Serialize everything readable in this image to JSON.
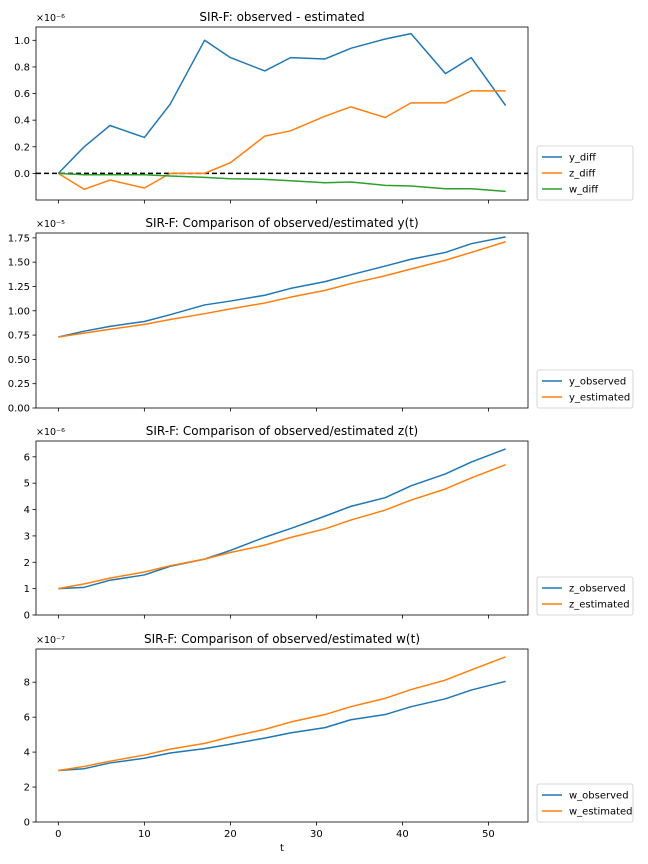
{
  "colors": {
    "c0": "#1f77b4",
    "c1": "#ff7f0e",
    "c2": "#2ca02c",
    "axis": "#000000",
    "zero_line": "#000000"
  },
  "chart_data": [
    {
      "type": "line",
      "title": "SIR-F: observed - estimated",
      "xlabel": "",
      "ylabel": "",
      "offset_text": "×10⁻⁶",
      "x": [
        0,
        3,
        6,
        10,
        13,
        17,
        20,
        24,
        27,
        31,
        34,
        38,
        41,
        45,
        48,
        52
      ],
      "xlim": [
        -2.6,
        54.6
      ],
      "ylim": [
        -0.2,
        1.1
      ],
      "yticks": [
        0.0,
        0.2,
        0.4,
        0.6,
        0.8,
        1.0
      ],
      "ytick_labels": [
        "0.0",
        "0.2",
        "0.4",
        "0.6",
        "0.8",
        "1.0"
      ],
      "xticks": [
        0,
        10,
        20,
        30,
        40,
        50
      ],
      "xtick_labels": [],
      "hline": 0,
      "legend_position": "right-bottom",
      "series": [
        {
          "name": "y_diff",
          "color": "#1f77b4",
          "values": [
            0.0,
            0.2,
            0.36,
            0.27,
            0.52,
            1.0,
            0.87,
            0.77,
            0.87,
            0.86,
            0.94,
            1.01,
            1.05,
            0.75,
            0.87,
            0.51
          ]
        },
        {
          "name": "z_diff",
          "color": "#ff7f0e",
          "values": [
            0.0,
            -0.12,
            -0.05,
            -0.11,
            0.0,
            0.0,
            0.08,
            0.28,
            0.32,
            0.43,
            0.5,
            0.42,
            0.53,
            0.53,
            0.62,
            0.62
          ]
        },
        {
          "name": "w_diff",
          "color": "#2ca02c",
          "values": [
            0.0,
            -0.01,
            -0.01,
            -0.01,
            -0.02,
            -0.03,
            -0.04,
            -0.045,
            -0.055,
            -0.07,
            -0.065,
            -0.09,
            -0.095,
            -0.115,
            -0.115,
            -0.135
          ]
        }
      ]
    },
    {
      "type": "line",
      "title": "SIR-F: Comparison of observed/estimated y(t)",
      "xlabel": "",
      "ylabel": "",
      "offset_text": "×10⁻⁵",
      "x": [
        0,
        3,
        6,
        10,
        13,
        17,
        20,
        24,
        27,
        31,
        34,
        38,
        41,
        45,
        48,
        52
      ],
      "xlim": [
        -2.6,
        54.6
      ],
      "ylim": [
        0,
        1.8
      ],
      "yticks": [
        0.0,
        0.25,
        0.5,
        0.75,
        1.0,
        1.25,
        1.5,
        1.75
      ],
      "ytick_labels": [
        "0.00",
        "0.25",
        "0.50",
        "0.75",
        "1.00",
        "1.25",
        "1.50",
        "1.75"
      ],
      "xticks": [
        0,
        10,
        20,
        30,
        40,
        50
      ],
      "xtick_labels": [],
      "legend_position": "right-bottom",
      "series": [
        {
          "name": "y_observed",
          "color": "#1f77b4",
          "values": [
            0.73,
            0.79,
            0.84,
            0.89,
            0.96,
            1.06,
            1.1,
            1.16,
            1.23,
            1.3,
            1.37,
            1.46,
            1.53,
            1.6,
            1.69,
            1.76
          ]
        },
        {
          "name": "y_estimated",
          "color": "#ff7f0e",
          "values": [
            0.73,
            0.77,
            0.81,
            0.86,
            0.91,
            0.97,
            1.02,
            1.08,
            1.14,
            1.21,
            1.28,
            1.36,
            1.43,
            1.52,
            1.6,
            1.71
          ]
        }
      ]
    },
    {
      "type": "line",
      "title": "SIR-F: Comparison of observed/estimated z(t)",
      "xlabel": "",
      "ylabel": "",
      "offset_text": "×10⁻⁶",
      "x": [
        0,
        3,
        6,
        10,
        13,
        17,
        20,
        24,
        27,
        31,
        34,
        38,
        41,
        45,
        48,
        52
      ],
      "xlim": [
        -2.6,
        54.6
      ],
      "ylim": [
        0,
        6.6
      ],
      "yticks": [
        0,
        1,
        2,
        3,
        4,
        5,
        6
      ],
      "ytick_labels": [
        "0",
        "1",
        "2",
        "3",
        "4",
        "5",
        "6"
      ],
      "xticks": [
        0,
        10,
        20,
        30,
        40,
        50
      ],
      "xtick_labels": [],
      "legend_position": "right-bottom",
      "series": [
        {
          "name": "z_observed",
          "color": "#1f77b4",
          "values": [
            1.0,
            1.05,
            1.32,
            1.52,
            1.85,
            2.12,
            2.45,
            2.95,
            3.28,
            3.75,
            4.12,
            4.45,
            4.9,
            5.35,
            5.8,
            6.3
          ]
        },
        {
          "name": "z_estimated",
          "color": "#ff7f0e",
          "values": [
            1.0,
            1.18,
            1.4,
            1.63,
            1.87,
            2.12,
            2.37,
            2.65,
            2.94,
            3.27,
            3.6,
            3.98,
            4.36,
            4.78,
            5.2,
            5.7
          ]
        }
      ]
    },
    {
      "type": "line",
      "title": "SIR-F: Comparison of observed/estimated w(t)",
      "xlabel": "t",
      "ylabel": "",
      "offset_text": "×10⁻⁷",
      "x": [
        0,
        3,
        6,
        10,
        13,
        17,
        20,
        24,
        27,
        31,
        34,
        38,
        41,
        45,
        48,
        52
      ],
      "xlim": [
        -2.6,
        54.6
      ],
      "ylim": [
        0,
        9.9
      ],
      "yticks": [
        0,
        2,
        4,
        6,
        8
      ],
      "ytick_labels": [
        "0",
        "2",
        "4",
        "6",
        "8"
      ],
      "xticks": [
        0,
        10,
        20,
        30,
        40,
        50
      ],
      "xtick_labels": [
        "0",
        "10",
        "20",
        "30",
        "40",
        "50"
      ],
      "legend_position": "right-bottom",
      "series": [
        {
          "name": "w_observed",
          "color": "#1f77b4",
          "values": [
            2.95,
            3.05,
            3.38,
            3.65,
            3.95,
            4.2,
            4.45,
            4.8,
            5.1,
            5.4,
            5.85,
            6.15,
            6.6,
            7.05,
            7.55,
            8.05
          ]
        },
        {
          "name": "w_estimated",
          "color": "#ff7f0e",
          "values": [
            2.95,
            3.18,
            3.48,
            3.83,
            4.17,
            4.5,
            4.87,
            5.3,
            5.72,
            6.15,
            6.6,
            7.08,
            7.58,
            8.12,
            8.7,
            9.45
          ]
        }
      ]
    }
  ]
}
